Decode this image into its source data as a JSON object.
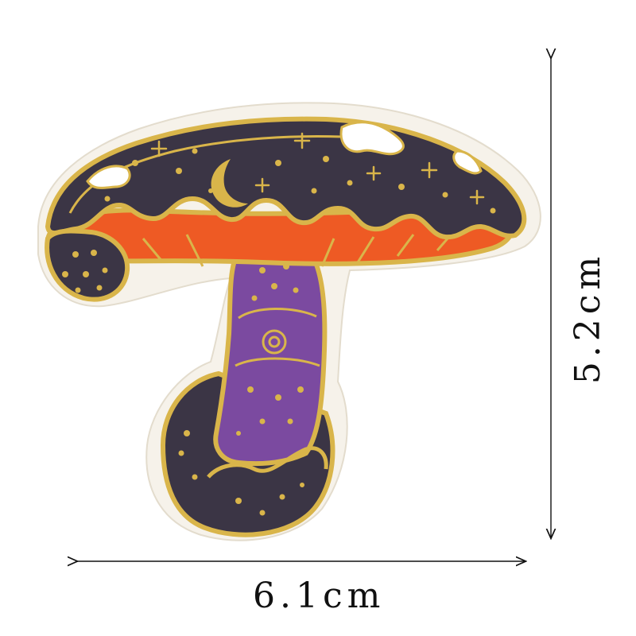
{
  "product": {
    "subject": "mushroom-embroidered-patch"
  },
  "dimensions": {
    "width_label": "6.1cm",
    "height_label": "5.2cm"
  },
  "colors": {
    "background": "#ffffff",
    "felt_border": "#f3efe7",
    "gold_thread": "#d9b54a",
    "cap_navy": "#3b3545",
    "cap_orange": "#ee5a24",
    "stem_purple": "#7b4aa0",
    "snow_white": "#ffffff",
    "dimension_line": "#111111"
  },
  "icons": {
    "arrow": "arrow-icon",
    "star": "star-icon",
    "moon": "crescent-moon-icon"
  }
}
